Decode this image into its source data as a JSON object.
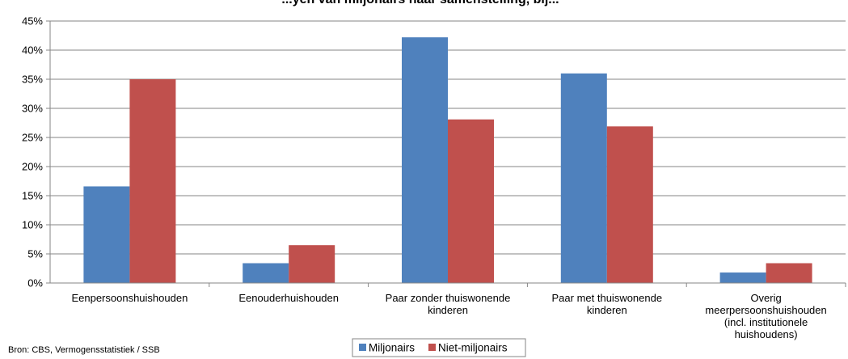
{
  "chart_data": {
    "type": "bar",
    "title": "...yen van miljonairs naar samenstelling, bij...",
    "categories": [
      [
        "Eenpersoonshuishouden"
      ],
      [
        "Eenouderhuishouden"
      ],
      [
        "Paar zonder thuiswonende",
        "kinderen"
      ],
      [
        "Paar met thuiswonende",
        "kinderen"
      ],
      [
        "Overig",
        "meerpersoonshuishouden",
        "(incl. institutionele",
        "huishoudens)"
      ]
    ],
    "series": [
      {
        "name": "Miljonairs",
        "color": "#4f81bd",
        "values": [
          16.6,
          3.4,
          42.2,
          36.0,
          1.8
        ]
      },
      {
        "name": "Niet-miljonairs",
        "color": "#c0504d",
        "values": [
          35.0,
          6.5,
          28.1,
          26.9,
          3.4
        ]
      }
    ],
    "ylim": [
      0,
      45
    ],
    "yticks": [
      "0%",
      "5%",
      "10%",
      "15%",
      "20%",
      "25%",
      "30%",
      "35%",
      "40%",
      "45%"
    ],
    "grid": true,
    "legend_position": "bottom"
  },
  "source": "Bron: CBS,  Vermogensstatistiek / SSB"
}
